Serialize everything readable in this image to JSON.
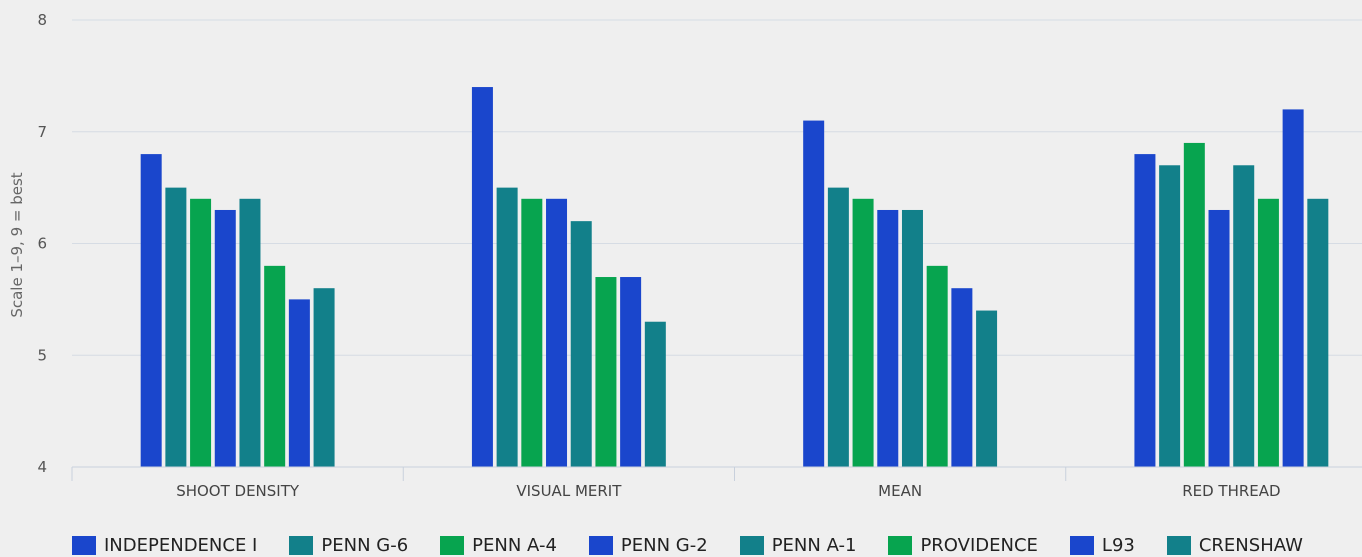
{
  "chart_data": {
    "type": "bar",
    "title": "",
    "xlabel": "",
    "ylabel": "Scale 1–9, 9 = best",
    "ylim": [
      4,
      8
    ],
    "yticks": [
      4,
      5,
      6,
      7,
      8
    ],
    "grid": true,
    "legend_position": "bottom",
    "categories": [
      "SHOOT DENSITY",
      "VISUAL MERIT",
      "MEAN",
      "RED THREAD"
    ],
    "series": [
      {
        "name": "INDEPENDENCE I",
        "color": "#1a46cc",
        "values": [
          6.8,
          7.4,
          7.1,
          6.8
        ]
      },
      {
        "name": "PENN G-6",
        "color": "#12808a",
        "values": [
          6.5,
          6.5,
          6.5,
          6.7
        ]
      },
      {
        "name": "PENN A-4",
        "color": "#07a44f",
        "values": [
          6.4,
          6.4,
          6.4,
          6.9
        ]
      },
      {
        "name": "PENN G-2",
        "color": "#1a46cc",
        "values": [
          6.3,
          6.4,
          6.3,
          6.3
        ]
      },
      {
        "name": "PENN A-1",
        "color": "#12808a",
        "values": [
          6.4,
          6.2,
          6.3,
          6.7
        ]
      },
      {
        "name": "PROVIDENCE",
        "color": "#07a44f",
        "values": [
          5.8,
          5.7,
          5.8,
          6.4
        ]
      },
      {
        "name": "L93",
        "color": "#1a46cc",
        "values": [
          5.5,
          5.7,
          5.6,
          7.2
        ]
      },
      {
        "name": "CRENSHAW",
        "color": "#12808a",
        "values": [
          5.6,
          5.3,
          5.4,
          6.4
        ]
      }
    ]
  }
}
